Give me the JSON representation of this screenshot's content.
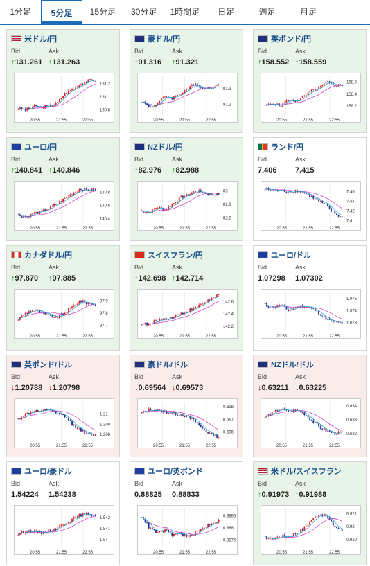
{
  "tabs": [
    {
      "label": "1分足",
      "active": false
    },
    {
      "label": "5分足",
      "active": true
    },
    {
      "label": "15分足",
      "active": false
    },
    {
      "label": "30分足",
      "active": false
    },
    {
      "label": "1時間足",
      "active": false
    },
    {
      "label": "日足",
      "active": false
    },
    {
      "label": "週足",
      "active": false
    },
    {
      "label": "月足",
      "active": false
    }
  ],
  "labels": {
    "bid": "Bid",
    "ask": "Ask"
  },
  "colors": {
    "up_card": "#e8f4e8",
    "down_card": "#fbecec",
    "up_arrow": "#2e9a2e",
    "down_arrow": "#c42020",
    "candle_up": "#e02020",
    "candle_down": "#1a2f9a",
    "ma_short": "#2aa0c8",
    "ma_long": "#cc44cc"
  },
  "cards": [
    {
      "pair": "米ドル/円",
      "flag": "us-jp-flag",
      "state": "up",
      "bid": "131.261",
      "ask": "131.263",
      "dir": "up"
    },
    {
      "pair": "豪ドル/円",
      "flag": "au-jp-flag",
      "state": "up",
      "bid": "91.316",
      "ask": "91.321",
      "dir": "up"
    },
    {
      "pair": "英ポンド/円",
      "flag": "gb-jp-flag",
      "state": "up",
      "bid": "158.552",
      "ask": "158.559",
      "dir": "up"
    },
    {
      "pair": "ユーロ/円",
      "flag": "eu-jp-flag",
      "state": "up",
      "bid": "140.841",
      "ask": "140.846",
      "dir": "up"
    },
    {
      "pair": "NZドル/円",
      "flag": "nz-jp-flag",
      "state": "up",
      "bid": "82.976",
      "ask": "82.988",
      "dir": "up"
    },
    {
      "pair": "ランド/円",
      "flag": "za-jp-flag",
      "state": "neutral",
      "bid": "7.406",
      "ask": "7.415",
      "dir": "none"
    },
    {
      "pair": "カナダドル/円",
      "flag": "ca-jp-flag",
      "state": "up",
      "bid": "97.870",
      "ask": "97.885",
      "dir": "up"
    },
    {
      "pair": "スイスフラン/円",
      "flag": "ch-jp-flag",
      "state": "up",
      "bid": "142.698",
      "ask": "142.714",
      "dir": "up"
    },
    {
      "pair": "ユーロ/ドル",
      "flag": "eu-us-flag",
      "state": "neutral",
      "bid": "1.07298",
      "ask": "1.07302",
      "dir": "none"
    },
    {
      "pair": "英ポンド/ドル",
      "flag": "gb-us-flag",
      "state": "down",
      "bid": "1.20788",
      "ask": "1.20798",
      "dir": "down"
    },
    {
      "pair": "豪ドル/ドル",
      "flag": "au-us-flag",
      "state": "down",
      "bid": "0.69564",
      "ask": "0.69573",
      "dir": "down"
    },
    {
      "pair": "NZドル/ドル",
      "flag": "nz-us-flag",
      "state": "down",
      "bid": "0.63211",
      "ask": "0.63225",
      "dir": "down"
    },
    {
      "pair": "ユーロ/豪ドル",
      "flag": "eu-au-flag",
      "state": "neutral",
      "bid": "1.54224",
      "ask": "1.54238",
      "dir": "none"
    },
    {
      "pair": "ユーロ/英ポンド",
      "flag": "eu-gb-flag",
      "state": "neutral",
      "bid": "0.88825",
      "ask": "0.88833",
      "dir": "none"
    },
    {
      "pair": "米ドル/スイスフラン",
      "flag": "us-ch-flag",
      "state": "up",
      "bid": "0.91973",
      "ask": "0.91988",
      "dir": "up"
    }
  ],
  "chart_data": [
    {
      "type": "candlestick",
      "xticks": [
        "20:55",
        "21:55",
        "22:55"
      ],
      "yticks": [
        "131.2",
        "131",
        "130.8"
      ],
      "ylim": [
        130.72,
        131.32
      ],
      "trend": [
        130.82,
        130.8,
        130.85,
        130.84,
        130.86,
        130.9,
        131.05,
        131.12,
        131.2,
        131.25,
        131.26
      ]
    },
    {
      "type": "candlestick",
      "xticks": [
        "20:55",
        "21:55",
        "22:55"
      ],
      "yticks": [
        "91.3",
        "91.2"
      ],
      "ylim": [
        91.13,
        91.38
      ],
      "trend": [
        91.22,
        91.18,
        91.2,
        91.25,
        91.24,
        91.27,
        91.3,
        91.33,
        91.3,
        91.31,
        91.32
      ]
    },
    {
      "type": "candlestick",
      "xticks": [
        "20:55",
        "21:55",
        "22:55"
      ],
      "yticks": [
        "158.6",
        "158.4",
        "158.2"
      ],
      "ylim": [
        158.05,
        158.7
      ],
      "trend": [
        158.2,
        158.25,
        158.2,
        158.3,
        158.28,
        158.35,
        158.45,
        158.5,
        158.6,
        158.55,
        158.55
      ]
    },
    {
      "type": "candlestick",
      "xticks": [
        "20:55",
        "21:55",
        "22:55"
      ],
      "yticks": [
        "140.8",
        "140.6",
        "140.4"
      ],
      "ylim": [
        140.33,
        140.92
      ],
      "trend": [
        140.45,
        140.42,
        140.48,
        140.5,
        140.56,
        140.62,
        140.7,
        140.78,
        140.85,
        140.83,
        140.84
      ]
    },
    {
      "type": "candlestick",
      "xticks": [
        "20:55",
        "21:55",
        "22:55"
      ],
      "yticks": [
        "83",
        "82.9",
        "82.8"
      ],
      "ylim": [
        82.76,
        83.05
      ],
      "trend": [
        82.85,
        82.84,
        82.88,
        82.86,
        82.9,
        82.95,
        82.97,
        83.0,
        82.99,
        82.97,
        82.98
      ]
    },
    {
      "type": "candlestick",
      "xticks": [
        "20:55",
        "21:55",
        "22:55"
      ],
      "yticks": [
        "7.46",
        "7.44",
        "7.42",
        "7.4"
      ],
      "ylim": [
        7.395,
        7.475
      ],
      "trend": [
        7.465,
        7.463,
        7.462,
        7.46,
        7.462,
        7.458,
        7.45,
        7.44,
        7.43,
        7.415,
        7.406
      ]
    },
    {
      "type": "candlestick",
      "xticks": [
        "20:55",
        "21:55",
        "22:55"
      ],
      "yticks": [
        "97.9",
        "97.8",
        "97.7"
      ],
      "ylim": [
        97.65,
        97.97
      ],
      "trend": [
        97.75,
        97.8,
        97.83,
        97.8,
        97.78,
        97.76,
        97.8,
        97.85,
        97.9,
        97.88,
        97.87
      ]
    },
    {
      "type": "candlestick",
      "xticks": [
        "20:55",
        "21:55",
        "22:55"
      ],
      "yticks": [
        "142.6",
        "142.4",
        "142.2"
      ],
      "ylim": [
        142.12,
        142.75
      ],
      "trend": [
        142.25,
        142.22,
        142.3,
        142.32,
        142.35,
        142.4,
        142.45,
        142.5,
        142.58,
        142.65,
        142.7
      ]
    },
    {
      "type": "candlestick",
      "xticks": [
        "20:55",
        "21:55",
        "22:55"
      ],
      "yticks": [
        "1.075",
        "1.074",
        "1.073"
      ],
      "ylim": [
        1.0723,
        1.0755
      ],
      "trend": [
        1.0745,
        1.0742,
        1.0745,
        1.074,
        1.0743,
        1.0744,
        1.0742,
        1.0738,
        1.0733,
        1.073,
        1.073
      ]
    },
    {
      "type": "candlestick",
      "xticks": [
        "20:55",
        "21:55",
        "22:55"
      ],
      "yticks": [
        "1.21",
        "1.209",
        "1.208"
      ],
      "ylim": [
        1.2074,
        1.2112
      ],
      "trend": [
        1.2095,
        1.21,
        1.2103,
        1.2102,
        1.2105,
        1.21,
        1.2098,
        1.209,
        1.2085,
        1.208,
        1.2079
      ]
    },
    {
      "type": "candlestick",
      "xticks": [
        "20:55",
        "21:55",
        "22:55"
      ],
      "yticks": [
        "0.698",
        "0.697",
        "0.696"
      ],
      "ylim": [
        0.6953,
        0.6984
      ],
      "trend": [
        0.6975,
        0.6978,
        0.6977,
        0.6976,
        0.6975,
        0.6974,
        0.6972,
        0.6968,
        0.6962,
        0.6958,
        0.6956
      ]
    },
    {
      "type": "candlestick",
      "xticks": [
        "20:55",
        "21:55",
        "22:55"
      ],
      "yticks": [
        "0.634",
        "0.633",
        "0.632"
      ],
      "ylim": [
        0.6315,
        0.6343
      ],
      "trend": [
        0.6332,
        0.6335,
        0.6338,
        0.6336,
        0.6337,
        0.6335,
        0.633,
        0.6325,
        0.6322,
        0.632,
        0.6321
      ]
    },
    {
      "type": "candlestick",
      "xticks": [
        "20:55",
        "21:55",
        "22:55"
      ],
      "yticks": [
        "1.542",
        "1.541",
        "1.54"
      ],
      "ylim": [
        1.5393,
        1.5428
      ],
      "trend": [
        1.5405,
        1.5408,
        1.5407,
        1.5406,
        1.5408,
        1.541,
        1.5415,
        1.5418,
        1.5422,
        1.5423,
        1.5422
      ]
    },
    {
      "type": "candlestick",
      "xticks": [
        "20:55",
        "21:55",
        "22:55"
      ],
      "yticks": [
        "0.8885",
        "0.888",
        "0.8875"
      ],
      "ylim": [
        0.8872,
        0.8888
      ],
      "trend": [
        0.8885,
        0.888,
        0.8878,
        0.8879,
        0.8877,
        0.8878,
        0.8876,
        0.8878,
        0.888,
        0.8882,
        0.8883
      ]
    },
    {
      "type": "candlestick",
      "xticks": [
        "20:55",
        "21:55",
        "22:55"
      ],
      "yticks": [
        "0.921",
        "0.92",
        "0.919"
      ],
      "ylim": [
        0.9184,
        0.9214
      ],
      "trend": [
        0.9192,
        0.919,
        0.9193,
        0.9192,
        0.9195,
        0.9198,
        0.9205,
        0.921,
        0.9208,
        0.92,
        0.9197
      ]
    }
  ]
}
